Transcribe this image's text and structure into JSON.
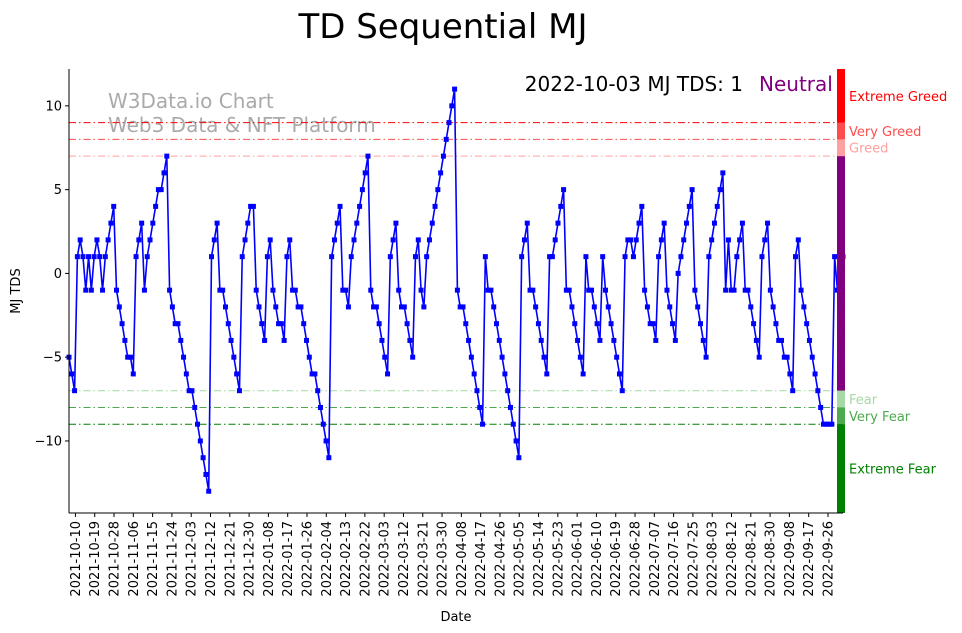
{
  "chart_data": {
    "type": "line",
    "title": "TD Sequential MJ",
    "xlabel": "Date",
    "ylabel": "MJ TDS",
    "ylim": [
      -14.3,
      12.2
    ],
    "y_ticks": [
      -10,
      -5,
      0,
      5,
      10
    ],
    "x_start_date": "2021-10-07",
    "x_end_date": "2022-10-03",
    "x_tick_labels": [
      "2021-10-10",
      "2021-10-19",
      "2021-10-28",
      "2021-11-06",
      "2021-11-15",
      "2021-11-24",
      "2021-12-03",
      "2021-12-12",
      "2021-12-21",
      "2021-12-30",
      "2022-01-08",
      "2022-01-17",
      "2022-01-26",
      "2022-02-04",
      "2022-02-13",
      "2022-02-22",
      "2022-03-03",
      "2022-03-12",
      "2022-03-21",
      "2022-03-30",
      "2022-04-08",
      "2022-04-17",
      "2022-04-26",
      "2022-05-05",
      "2022-05-14",
      "2022-05-23",
      "2022-06-01",
      "2022-06-10",
      "2022-06-19",
      "2022-06-28",
      "2022-07-07",
      "2022-07-16",
      "2022-07-25",
      "2022-08-03",
      "2022-08-12",
      "2022-08-21",
      "2022-08-30",
      "2022-09-08",
      "2022-09-17",
      "2022-09-26"
    ],
    "series": [
      {
        "name": "MJ TDS",
        "color": "#0000ff",
        "values": [
          -5,
          -6,
          -7,
          1,
          2,
          1,
          -1,
          1,
          -1,
          1,
          2,
          1,
          -1,
          1,
          2,
          3,
          4,
          -1,
          -2,
          -3,
          -4,
          -5,
          -5,
          -6,
          1,
          2,
          3,
          -1,
          1,
          2,
          3,
          4,
          5,
          5,
          6,
          7,
          -1,
          -2,
          -3,
          -3,
          -4,
          -5,
          -6,
          -7,
          -7,
          -8,
          -9,
          -10,
          -11,
          -12,
          -13,
          1,
          2,
          3,
          -1,
          -1,
          -2,
          -3,
          -4,
          -5,
          -6,
          -7,
          1,
          2,
          3,
          4,
          4,
          -1,
          -2,
          -3,
          -4,
          1,
          2,
          -1,
          -2,
          -3,
          -3,
          -4,
          1,
          2,
          -1,
          -1,
          -2,
          -2,
          -3,
          -4,
          -5,
          -6,
          -6,
          -7,
          -8,
          -9,
          -10,
          -11,
          1,
          2,
          3,
          4,
          -1,
          -1,
          -2,
          1,
          2,
          3,
          4,
          5,
          6,
          7,
          -1,
          -2,
          -2,
          -3,
          -4,
          -5,
          -6,
          1,
          2,
          3,
          -1,
          -2,
          -2,
          -3,
          -4,
          -5,
          1,
          2,
          -1,
          -2,
          1,
          2,
          3,
          4,
          5,
          6,
          7,
          8,
          9,
          10,
          11,
          -1,
          -2,
          -2,
          -3,
          -4,
          -5,
          -6,
          -7,
          -8,
          -9,
          1,
          -1,
          -1,
          -2,
          -3,
          -4,
          -5,
          -6,
          -7,
          -8,
          -9,
          -10,
          -11,
          1,
          2,
          3,
          -1,
          -1,
          -2,
          -3,
          -4,
          -5,
          -6,
          1,
          1,
          2,
          3,
          4,
          5,
          -1,
          -1,
          -2,
          -3,
          -4,
          -5,
          -6,
          1,
          -1,
          -1,
          -2,
          -3,
          -4,
          1,
          -1,
          -2,
          -3,
          -4,
          -5,
          -6,
          -7,
          1,
          2,
          2,
          1,
          2,
          3,
          4,
          -1,
          -2,
          -3,
          -3,
          -4,
          1,
          2,
          3,
          -1,
          -2,
          -3,
          -4,
          0,
          1,
          2,
          3,
          4,
          5,
          -1,
          -2,
          -3,
          -4,
          -5,
          1,
          2,
          3,
          4,
          5,
          6,
          -1,
          2,
          -1,
          -1,
          1,
          2,
          3,
          -1,
          -1,
          -2,
          -3,
          -4,
          -5,
          1,
          2,
          3,
          -1,
          -2,
          -3,
          -4,
          -4,
          -5,
          -5,
          -6,
          -7,
          1,
          2,
          -1,
          -2,
          -3,
          -4,
          -5,
          -6,
          -7,
          -8,
          -9,
          -9,
          -9,
          -9,
          1,
          -1,
          -2,
          1
        ]
      }
    ],
    "thresholds": [
      {
        "label": "Extreme Greed",
        "value": 9,
        "color": "#ff0000",
        "band_from": 9,
        "band_to": 12.2
      },
      {
        "label": "Very Greed",
        "value": 8,
        "color": "#ff4d4d",
        "band_from": 8,
        "band_to": 9
      },
      {
        "label": "Greed",
        "value": 7,
        "color": "#ffa0a0",
        "band_from": 7,
        "band_to": 8
      },
      {
        "label": "Fear",
        "value": -7,
        "color": "#a6d9a6",
        "band_from": -8,
        "band_to": -7
      },
      {
        "label": "Very Fear",
        "value": -8,
        "color": "#4daa4d",
        "band_from": -9,
        "band_to": -8
      },
      {
        "label": "Extreme Fear",
        "value": -9,
        "color": "#008000",
        "band_from": -14.3,
        "band_to": -9
      }
    ],
    "neutral_band": {
      "label": "Neutral",
      "color": "#800080",
      "from": -7,
      "to": 7
    },
    "annotation": {
      "text": "2022-10-03 MJ TDS: 1",
      "state": "Neutral",
      "state_color": "#800080"
    },
    "watermark": {
      "line1": "W3Data.io Chart",
      "line2": "Web3 Data & NFT Platform"
    }
  }
}
